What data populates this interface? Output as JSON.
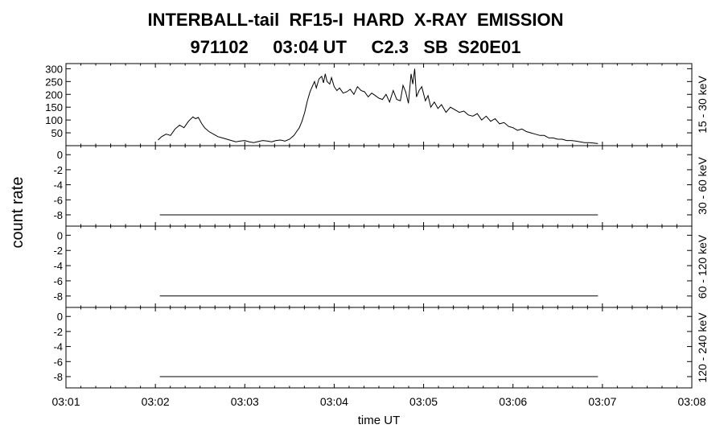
{
  "header": {
    "title_line1": "INTERBALL-tail  RF15-I  HARD  X-RAY  EMISSION",
    "title_line2": "971102     03:04 UT     C2.3   SB  S20E01"
  },
  "chart_data": {
    "type": "line",
    "ylabel": "count rate",
    "xlabel": "time UT",
    "x_unit": "minutes since 03:00 UT",
    "xlim": [
      1,
      8
    ],
    "x_ticks": [
      "03:01",
      "03:02",
      "03:03",
      "03:04",
      "03:05",
      "03:06",
      "03:07",
      "03:08"
    ],
    "panels": [
      {
        "label": "15 - 30 keV",
        "y_ticks": [
          50,
          100,
          150,
          200,
          250,
          300
        ],
        "ylim": [
          0,
          320
        ],
        "series": {
          "x": [
            2.03,
            2.07,
            2.12,
            2.17,
            2.22,
            2.27,
            2.32,
            2.37,
            2.42,
            2.45,
            2.48,
            2.52,
            2.55,
            2.6,
            2.65,
            2.7,
            2.75,
            2.8,
            2.85,
            2.9,
            2.95,
            3.0,
            3.05,
            3.1,
            3.15,
            3.2,
            3.25,
            3.3,
            3.35,
            3.4,
            3.45,
            3.5,
            3.55,
            3.58,
            3.61,
            3.64,
            3.67,
            3.7,
            3.73,
            3.76,
            3.78,
            3.8,
            3.83,
            3.86,
            3.88,
            3.9,
            3.92,
            3.95,
            3.97,
            4.0,
            4.03,
            4.06,
            4.1,
            4.14,
            4.18,
            4.22,
            4.26,
            4.3,
            4.34,
            4.38,
            4.42,
            4.46,
            4.5,
            4.54,
            4.58,
            4.62,
            4.66,
            4.7,
            4.74,
            4.77,
            4.8,
            4.83,
            4.86,
            4.88,
            4.9,
            4.92,
            4.95,
            4.98,
            5.02,
            5.05,
            5.08,
            5.12,
            5.16,
            5.2,
            5.25,
            5.3,
            5.35,
            5.4,
            5.45,
            5.5,
            5.55,
            5.6,
            5.65,
            5.7,
            5.75,
            5.8,
            5.85,
            5.9,
            5.95,
            6.0,
            6.05,
            6.1,
            6.15,
            6.2,
            6.25,
            6.3,
            6.35,
            6.4,
            6.45,
            6.5,
            6.55,
            6.6,
            6.65,
            6.7,
            6.75,
            6.8,
            6.85,
            6.9,
            6.95
          ],
          "y": [
            22,
            35,
            45,
            40,
            65,
            80,
            70,
            95,
            112,
            105,
            110,
            85,
            70,
            55,
            45,
            35,
            30,
            25,
            20,
            15,
            18,
            20,
            15,
            12,
            16,
            20,
            18,
            15,
            20,
            22,
            18,
            25,
            40,
            55,
            70,
            95,
            130,
            175,
            210,
            235,
            250,
            225,
            260,
            270,
            245,
            280,
            250,
            240,
            265,
            230,
            215,
            225,
            205,
            210,
            220,
            200,
            230,
            215,
            210,
            190,
            205,
            195,
            185,
            180,
            200,
            170,
            215,
            180,
            175,
            235,
            210,
            165,
            280,
            240,
            300,
            190,
            215,
            230,
            175,
            195,
            150,
            170,
            145,
            160,
            130,
            150,
            140,
            130,
            135,
            120,
            115,
            125,
            100,
            115,
            95,
            105,
            85,
            90,
            75,
            70,
            60,
            65,
            55,
            50,
            45,
            40,
            40,
            30,
            30,
            25,
            25,
            20,
            20,
            18,
            15,
            12,
            12,
            10,
            8
          ]
        }
      },
      {
        "label": "30 - 60 keV",
        "y_ticks": [
          -8,
          -6,
          -4,
          -2,
          0
        ],
        "ylim": [
          -9.5,
          1.2
        ],
        "series": {
          "x": [
            2.05,
            6.95
          ],
          "y": [
            -8,
            -8
          ]
        }
      },
      {
        "label": "60 - 120 keV",
        "y_ticks": [
          -8,
          -6,
          -4,
          -2,
          0
        ],
        "ylim": [
          -9.5,
          1.2
        ],
        "series": {
          "x": [
            2.05,
            6.95
          ],
          "y": [
            -8,
            -8
          ]
        }
      },
      {
        "label": "120 - 240 keV",
        "y_ticks": [
          -8,
          -6,
          -4,
          -2,
          0
        ],
        "ylim": [
          -9.5,
          1.2
        ],
        "series": {
          "x": [
            2.05,
            6.95
          ],
          "y": [
            -8,
            -8
          ]
        }
      }
    ]
  }
}
